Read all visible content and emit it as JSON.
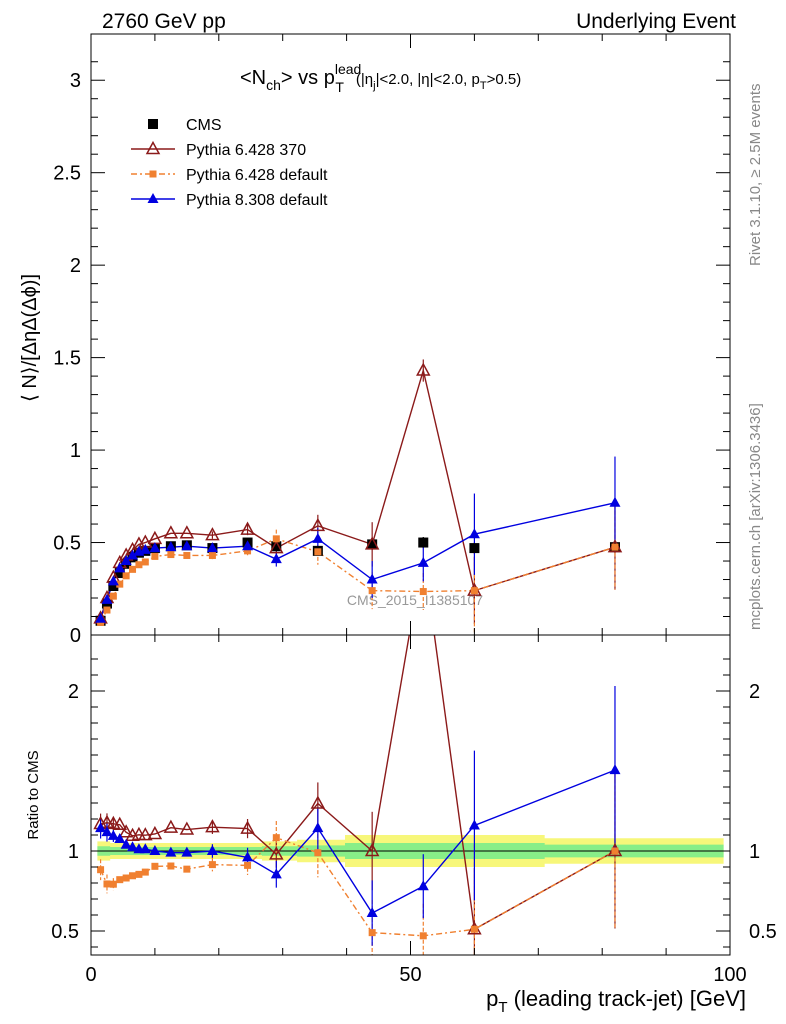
{
  "header": {
    "left": "2760 GeV pp",
    "right": "Underlying Event"
  },
  "side": {
    "rivet": "Rivet 3.1.10, ≥ 2.5M events",
    "mcplots": "mcplots.cern.ch [arXiv:1306.3436]"
  },
  "chart_data": {
    "type": "line",
    "title": {
      "prefix": "<N",
      "sub1": "ch",
      "mid": "> vs p",
      "sup": "lead",
      "sub2": "T",
      "cuts_a": "(|η",
      "cuts_sub_j": "j",
      "cuts_b": "|<2.0, |η|<2.0, p",
      "cuts_sub_t": "T",
      "cuts_c": ">0.5)"
    },
    "watermark": "CMS_2015_I1385107",
    "xlabel": "p",
    "xlabel_sub": "T",
    "xlabel_rest": " (leading track-jet) [GeV]",
    "ylabel_main": "⟨ N⟩/[ΔηΔ(Δϕ)]",
    "ylabel_ratio": "Ratio to CMS",
    "xlim": [
      0,
      100
    ],
    "ylim_main": [
      0,
      3.25
    ],
    "ylim_ratio": [
      0.35,
      2.35
    ],
    "xticks": [
      "0",
      "50",
      "100"
    ],
    "yticks_main": [
      "0",
      "0.5",
      "1",
      "1.5",
      "2",
      "2.5",
      "3"
    ],
    "yticks_ratio": [
      "0.5",
      "1",
      "2"
    ],
    "x": [
      1.5,
      2.5,
      3.5,
      4.5,
      5.5,
      6.5,
      7.5,
      8.5,
      10,
      12.5,
      15,
      19,
      24.5,
      29,
      35.5,
      44,
      52,
      60,
      82
    ],
    "series": [
      {
        "name": "CMS",
        "color": "#000000",
        "marker": "square",
        "values": [
          0.077,
          0.17,
          0.265,
          0.335,
          0.385,
          0.42,
          0.445,
          0.455,
          0.47,
          0.48,
          0.485,
          0.47,
          0.5,
          0.48,
          0.455,
          0.49,
          0.5,
          0.47,
          0.475
        ],
        "err": [
          0.005,
          0.01,
          0.01,
          0.01,
          0.01,
          0.01,
          0.01,
          0.01,
          0.01,
          0.01,
          0.01,
          0.01,
          0.01,
          0.02,
          0.02,
          0.03,
          0.03,
          0.03,
          0.03
        ]
      },
      {
        "name": "Pythia 6.428 370",
        "color": "#8b1a1a",
        "marker": "triangle-open",
        "values": [
          0.09,
          0.2,
          0.31,
          0.39,
          0.43,
          0.46,
          0.49,
          0.5,
          0.52,
          0.55,
          0.55,
          0.54,
          0.57,
          0.47,
          0.59,
          0.49,
          1.43,
          0.24,
          0.475
        ],
        "err": [
          0.005,
          0.01,
          0.01,
          0.01,
          0.01,
          0.01,
          0.01,
          0.01,
          0.01,
          0.01,
          0.01,
          0.02,
          0.03,
          0.04,
          0.06,
          0.12,
          0.06,
          0.18,
          0.23
        ]
      },
      {
        "name": "Pythia 6.428 default",
        "color": "#f08030",
        "marker": "square-small",
        "values": [
          0.068,
          0.135,
          0.21,
          0.275,
          0.32,
          0.355,
          0.38,
          0.395,
          0.425,
          0.435,
          0.43,
          0.43,
          0.455,
          0.52,
          0.45,
          0.24,
          0.235,
          0.24,
          0.475
        ],
        "err": [
          0.005,
          0.01,
          0.01,
          0.01,
          0.01,
          0.01,
          0.01,
          0.01,
          0.01,
          0.01,
          0.01,
          0.02,
          0.03,
          0.05,
          0.07,
          0.1,
          0.1,
          0.25,
          0.23
        ]
      },
      {
        "name": "Pythia 8.308 default",
        "color": "#0000e0",
        "marker": "triangle",
        "values": [
          0.088,
          0.19,
          0.29,
          0.36,
          0.4,
          0.43,
          0.45,
          0.46,
          0.47,
          0.475,
          0.48,
          0.47,
          0.48,
          0.41,
          0.52,
          0.3,
          0.39,
          0.545,
          0.715
        ],
        "err": [
          0.005,
          0.01,
          0.01,
          0.01,
          0.01,
          0.01,
          0.01,
          0.01,
          0.01,
          0.01,
          0.01,
          0.02,
          0.03,
          0.04,
          0.06,
          0.1,
          0.1,
          0.22,
          0.25
        ]
      }
    ],
    "ratio_band": {
      "yellow": [
        0.06,
        0.06,
        0.05,
        0.05,
        0.05,
        0.05,
        0.05,
        0.05,
        0.05,
        0.05,
        0.05,
        0.05,
        0.05,
        0.06,
        0.07,
        0.1,
        0.1,
        0.1,
        0.08
      ],
      "green": [
        0.03,
        0.03,
        0.025,
        0.025,
        0.025,
        0.025,
        0.025,
        0.025,
        0.025,
        0.025,
        0.025,
        0.025,
        0.025,
        0.03,
        0.035,
        0.05,
        0.05,
        0.05,
        0.04
      ]
    },
    "grid": false,
    "legend_position": "top-left"
  }
}
